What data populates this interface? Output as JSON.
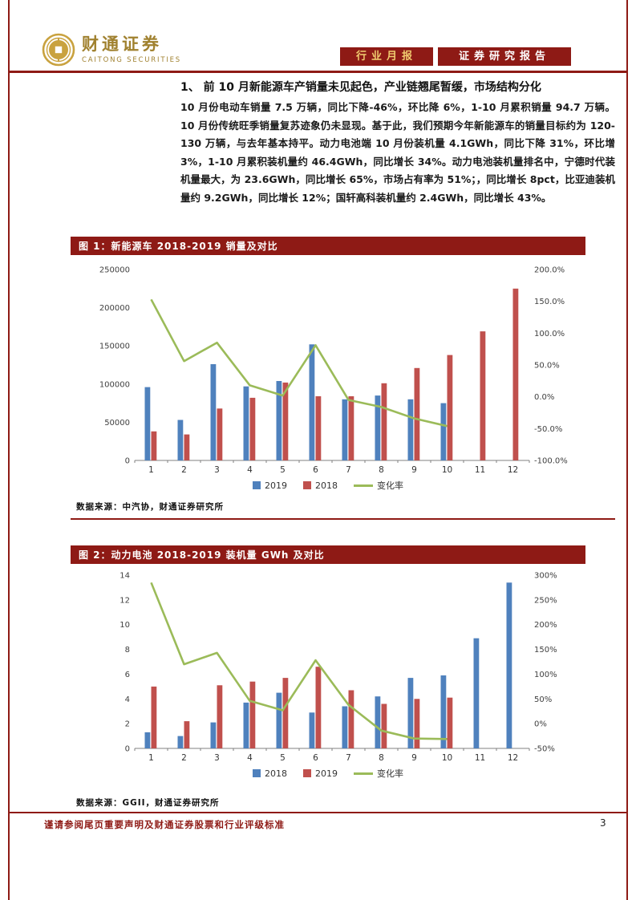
{
  "header": {
    "logo_cn": "财通证券",
    "logo_en": "CAITONG SECURITIES",
    "badge_industry": "行业月报",
    "badge_research": "证券研究报告"
  },
  "section": {
    "heading": "1、  前 10 月新能源车产销量未见起色，产业链翘尾暂缓，市场结构分化",
    "paragraph": "10 月份电动车销量 7.5 万辆，同比下降-46%，环比降 6%，1-10 月累积销量 94.7 万辆。10 月份传统旺季销量复苏迹象仍未显现。基于此，我们预期今年新能源车的销量目标约为 120-130 万辆，与去年基本持平。动力电池端 10 月份装机量 4.1GWh，同比下降 31%，环比增 3%，1-10 月累积装机量约 46.4GWh，同比增长 34%。动力电池装机量排名中，宁德时代装机量最大，为 23.6GWh，同比增长 65%，市场占有率为 51%；，同比增长 8pct，比亚迪装机量约 9.2GWh，同比增长 12%；国轩高科装机量约 2.4GWh，同比增长 43%。"
  },
  "figures": [
    {
      "source": "数据来源：中汽协，财通证券研究所"
    },
    {
      "source": "数据来源：GGII，财通证券研究所"
    }
  ],
  "footer": {
    "note": "谨请参阅尾页重要声明及财通证券股票和行业评级标准",
    "page_number": "3"
  },
  "colors": {
    "accent_red": "#8E1A15",
    "bar_blue": "#4F81BD",
    "bar_red": "#C0504D",
    "line_green": "#9BBB59"
  },
  "chart_data": [
    {
      "type": "bar",
      "title": "图 1：新能源车 2018-2019 销量及对比",
      "categories": [
        "1",
        "2",
        "3",
        "4",
        "5",
        "6",
        "7",
        "8",
        "9",
        "10",
        "11",
        "12"
      ],
      "series": [
        {
          "name": "2019",
          "type": "bar",
          "axis": "left",
          "color_key": "bar_blue",
          "values": [
            96000,
            53000,
            126000,
            97000,
            104000,
            152000,
            80000,
            85000,
            80000,
            75000,
            null,
            null
          ]
        },
        {
          "name": "2018",
          "type": "bar",
          "axis": "left",
          "color_key": "bar_red",
          "values": [
            38000,
            34000,
            68000,
            82000,
            102000,
            84000,
            84000,
            101000,
            121000,
            138000,
            169000,
            225000
          ]
        },
        {
          "name": "变化率",
          "type": "line",
          "axis": "right",
          "color_key": "line_green",
          "values": [
            153,
            56,
            85,
            18,
            2,
            81,
            -5,
            -16,
            -34,
            -46,
            null,
            null
          ]
        }
      ],
      "left_axis": {
        "min": 0,
        "max": 250000,
        "tick_values": [
          0,
          50000,
          100000,
          150000,
          200000,
          250000
        ],
        "tick_labels": [
          "0",
          "50000",
          "100000",
          "150000",
          "200000",
          "250000"
        ]
      },
      "right_axis": {
        "min": -100,
        "max": 200,
        "tick_values": [
          -100,
          -50,
          0,
          50,
          100,
          150,
          200
        ],
        "tick_labels": [
          "-100.0%",
          "-50.0%",
          "0.0%",
          "50.0%",
          "100.0%",
          "150.0%",
          "200.0%"
        ]
      },
      "xlabel": "",
      "ylabel": "",
      "grid": false,
      "legend_position": "bottom"
    },
    {
      "type": "bar",
      "title": "图 2：动力电池 2018-2019 装机量 GWh 及对比",
      "categories": [
        "1",
        "2",
        "3",
        "4",
        "5",
        "6",
        "7",
        "8",
        "9",
        "10",
        "11",
        "12"
      ],
      "series": [
        {
          "name": "2018",
          "type": "bar",
          "axis": "left",
          "color_key": "bar_blue",
          "values": [
            1.3,
            1.0,
            2.1,
            3.7,
            4.5,
            2.9,
            3.4,
            4.2,
            5.7,
            5.9,
            8.9,
            13.4
          ]
        },
        {
          "name": "2019",
          "type": "bar",
          "axis": "left",
          "color_key": "bar_red",
          "values": [
            5.0,
            2.2,
            5.1,
            5.4,
            5.7,
            6.6,
            4.7,
            3.6,
            4.0,
            4.1,
            null,
            null
          ]
        },
        {
          "name": "变化率",
          "type": "line",
          "axis": "right",
          "color_key": "line_green",
          "values": [
            285,
            120,
            143,
            46,
            27,
            128,
            38,
            -14,
            -30,
            -31,
            null,
            null
          ]
        }
      ],
      "left_axis": {
        "min": 0,
        "max": 14,
        "tick_values": [
          0,
          2,
          4,
          6,
          8,
          10,
          12,
          14
        ],
        "tick_labels": [
          "0",
          "2",
          "4",
          "6",
          "8",
          "10",
          "12",
          "14"
        ]
      },
      "right_axis": {
        "min": -50,
        "max": 300,
        "tick_values": [
          -50,
          0,
          50,
          100,
          150,
          200,
          250,
          300
        ],
        "tick_labels": [
          "-50%",
          "0%",
          "50%",
          "100%",
          "150%",
          "200%",
          "250%",
          "300%"
        ]
      },
      "xlabel": "",
      "ylabel": "",
      "grid": false,
      "legend_position": "bottom"
    }
  ]
}
